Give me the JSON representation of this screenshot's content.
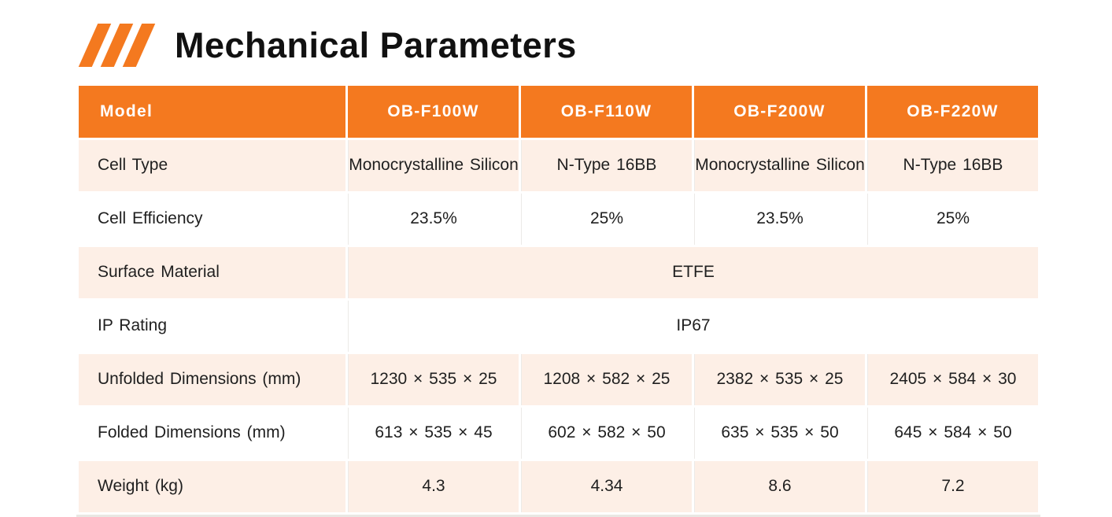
{
  "colors": {
    "accent_orange": "#F4791F",
    "band_peach": "#FDEFE6",
    "header_text": "#FFFFFF",
    "body_text": "#1F1F1F"
  },
  "header": {
    "icon": "triple-slash-icon",
    "title": "Mechanical Parameters"
  },
  "table": {
    "columns": [
      "Model",
      "OB-F100W",
      "OB-F110W",
      "OB-F200W",
      "OB-F220W"
    ],
    "rows": [
      {
        "label": "Cell Type",
        "values": [
          "Monocrystalline Silicon",
          "N-Type 16BB",
          "Monocrystalline Silicon",
          "N-Type 16BB"
        ]
      },
      {
        "label": "Cell Efficiency",
        "values": [
          "23.5%",
          "25%",
          "23.5%",
          "25%"
        ]
      },
      {
        "label": "Surface Material",
        "merged_value": "ETFE"
      },
      {
        "label": "IP Rating",
        "merged_value": "IP67"
      },
      {
        "label": "Unfolded Dimensions (mm)",
        "values": [
          "1230 × 535 × 25",
          "1208 × 582 × 25",
          "2382 × 535 × 25",
          "2405 × 584 × 30"
        ]
      },
      {
        "label": "Folded Dimensions (mm)",
        "values": [
          "613 × 535 × 45",
          "602 × 582 × 50",
          "635 × 535 × 50",
          "645 × 584 × 50"
        ]
      },
      {
        "label": "Weight (kg)",
        "values": [
          "4.3",
          "4.34",
          "8.6",
          "7.2"
        ]
      }
    ]
  }
}
